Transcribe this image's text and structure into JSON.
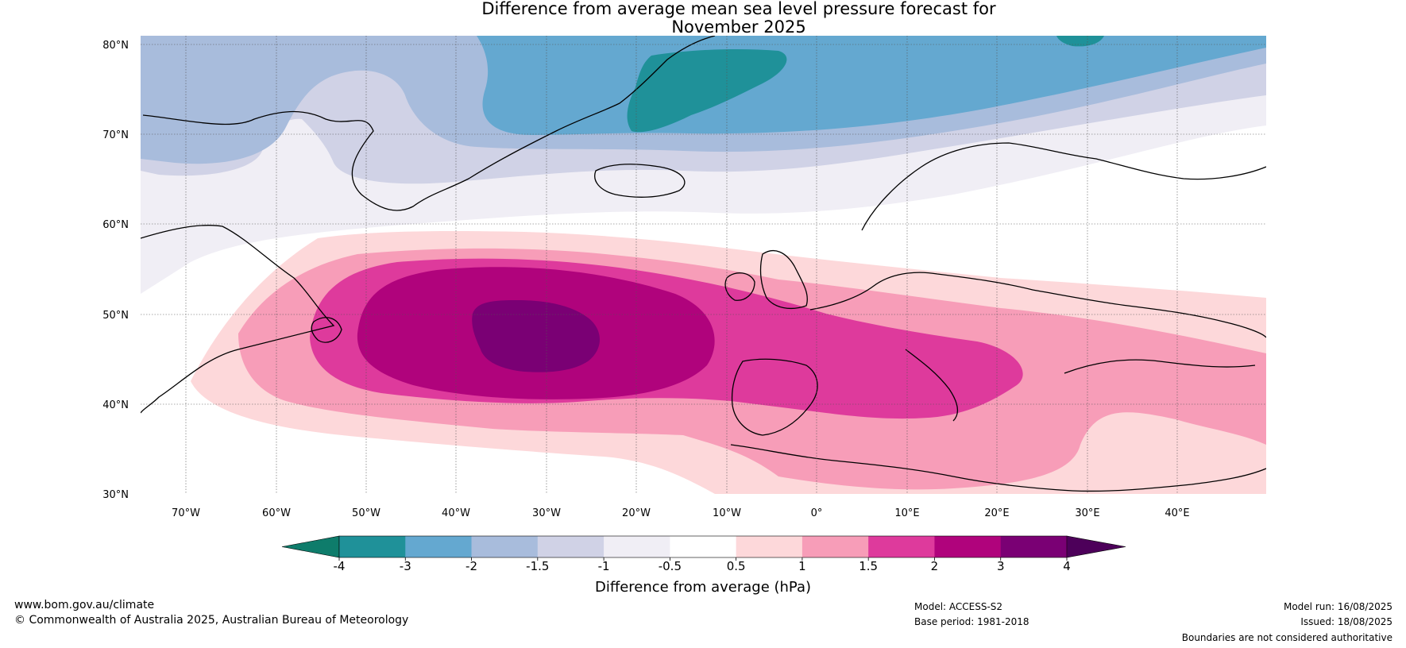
{
  "title_line1": "Difference from average mean sea level pressure forecast for",
  "title_line2": "November 2025",
  "lat_labels": [
    "80°N",
    "70°N",
    "60°N",
    "50°N",
    "40°N",
    "30°N"
  ],
  "lon_labels": [
    "70°W",
    "60°W",
    "50°W",
    "40°W",
    "30°W",
    "20°W",
    "10°W",
    "0°",
    "10°E",
    "20°E",
    "30°E",
    "40°E"
  ],
  "colorbar": {
    "label": "Difference from average (hPa)",
    "ticks": [
      "-4",
      "-3",
      "-2",
      "-1.5",
      "-1",
      "-0.5",
      "0.5",
      "1",
      "1.5",
      "2",
      "3",
      "4"
    ],
    "colors": {
      "below_min": "#0e7c6b",
      "n4_n3": "#1f9199",
      "n3_n2": "#64a8d0",
      "n2_n15": "#a8bcdc",
      "n15_n1": "#d0d2e6",
      "n1_n05": "#f0eef5",
      "n05_05": "#ffffff",
      "p05_1": "#fdd8da",
      "p1_15": "#f79db8",
      "p15_2": "#de3a9c",
      "p2_3": "#b0037c",
      "p3_4": "#7a0074",
      "above_max": "#4d005a"
    }
  },
  "footer": {
    "url": "www.bom.gov.au/climate",
    "copyright": "© Commonwealth of Australia 2025, Australian Bureau of Meteorology",
    "model": "Model: ACCESS-S2",
    "base_period": "Base period: 1981-2018",
    "model_run": "Model run: 16/08/2025",
    "issued": "Issued: 18/08/2025",
    "disclaimer": "Boundaries are not considered authoritative"
  }
}
